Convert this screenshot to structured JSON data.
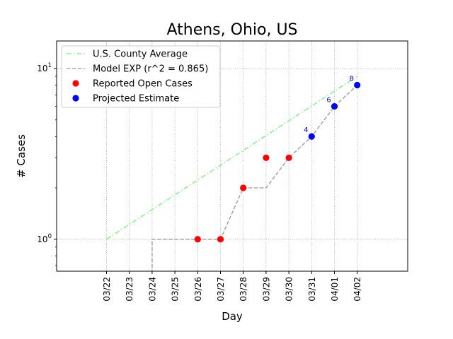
{
  "chart_data": {
    "type": "line",
    "title": "Athens, Ohio, US",
    "xlabel": "Day",
    "ylabel": "# Cases",
    "y_scale": "log",
    "ylim": [
      0.65,
      14.5
    ],
    "y_ticks": [
      {
        "value": 1,
        "base": "10",
        "exp": "0"
      },
      {
        "value": 10,
        "base": "10",
        "exp": "1"
      }
    ],
    "categories": [
      "03/22",
      "03/23",
      "03/24",
      "03/25",
      "03/26",
      "03/27",
      "03/28",
      "03/29",
      "03/30",
      "03/31",
      "04/01",
      "04/02"
    ],
    "grid": true,
    "legend_position": "top-left",
    "series": [
      {
        "name": "U.S. County Average",
        "style": "dash-dot",
        "color": "#90ee90",
        "x": [
          "03/22",
          "04/02"
        ],
        "y": [
          1,
          9
        ]
      },
      {
        "name": "Model EXP (r^2 = 0.865)",
        "style": "dashed",
        "color": "#a9a9a9",
        "x": [
          "03/24",
          "03/24",
          "03/25",
          "03/26",
          "03/27",
          "03/28",
          "03/29",
          "03/30",
          "03/31",
          "04/01",
          "04/02"
        ],
        "y": [
          0.5,
          1,
          1,
          1,
          1,
          2,
          2,
          3,
          4,
          6,
          8
        ]
      },
      {
        "name": "Reported Open Cases",
        "style": "markers",
        "color": "#ff0000",
        "x": [
          "03/26",
          "03/27",
          "03/28",
          "03/29",
          "03/30"
        ],
        "y": [
          1,
          1,
          2,
          3,
          3
        ]
      },
      {
        "name": "Projected Estimate",
        "style": "markers",
        "color": "#0000ff",
        "x": [
          "03/31",
          "04/01",
          "04/02"
        ],
        "y": [
          4,
          6,
          8
        ]
      }
    ],
    "annotations": [
      {
        "x": "03/31",
        "y": 4,
        "text": "4"
      },
      {
        "x": "04/01",
        "y": 6,
        "text": "6"
      },
      {
        "x": "04/02",
        "y": 8,
        "text": "8"
      }
    ]
  }
}
